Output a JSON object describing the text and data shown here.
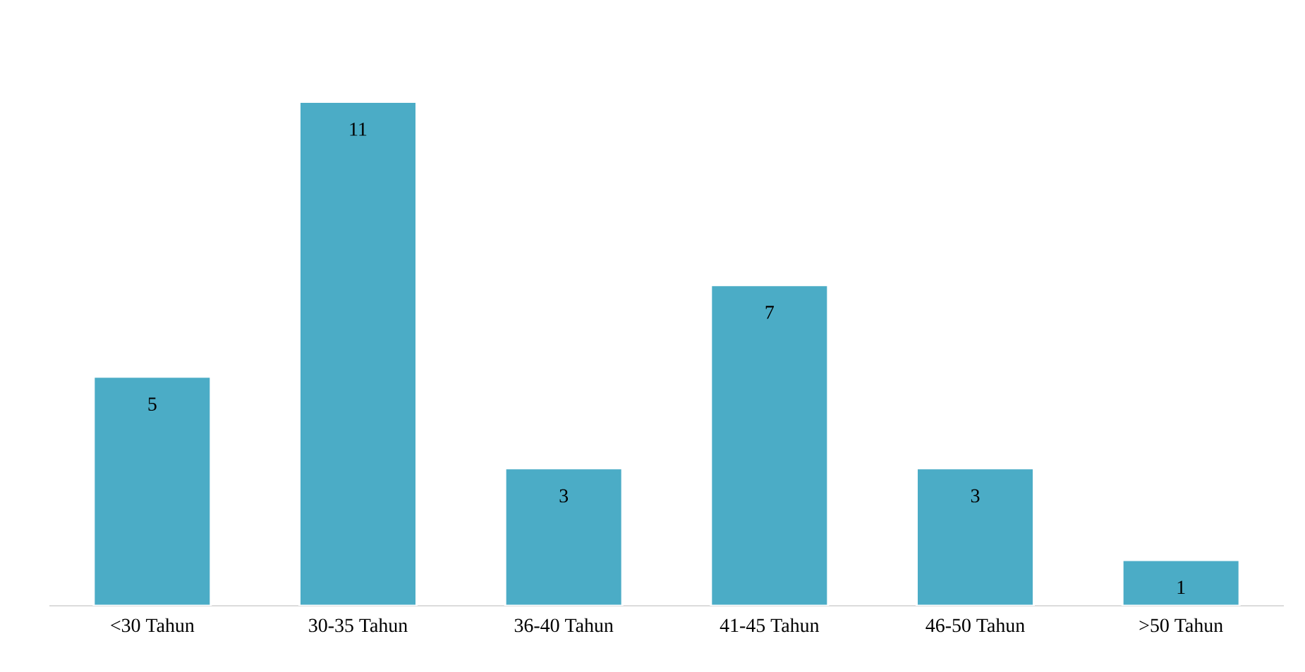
{
  "chart_data": {
    "type": "bar",
    "categories": [
      "<30 Tahun",
      "30-35 Tahun",
      "36-40 Tahun",
      "41-45 Tahun",
      "46-50 Tahun",
      ">50 Tahun"
    ],
    "values": [
      5,
      11,
      3,
      7,
      3,
      1
    ],
    "color": "#4bacc6",
    "data_labels": true
  }
}
